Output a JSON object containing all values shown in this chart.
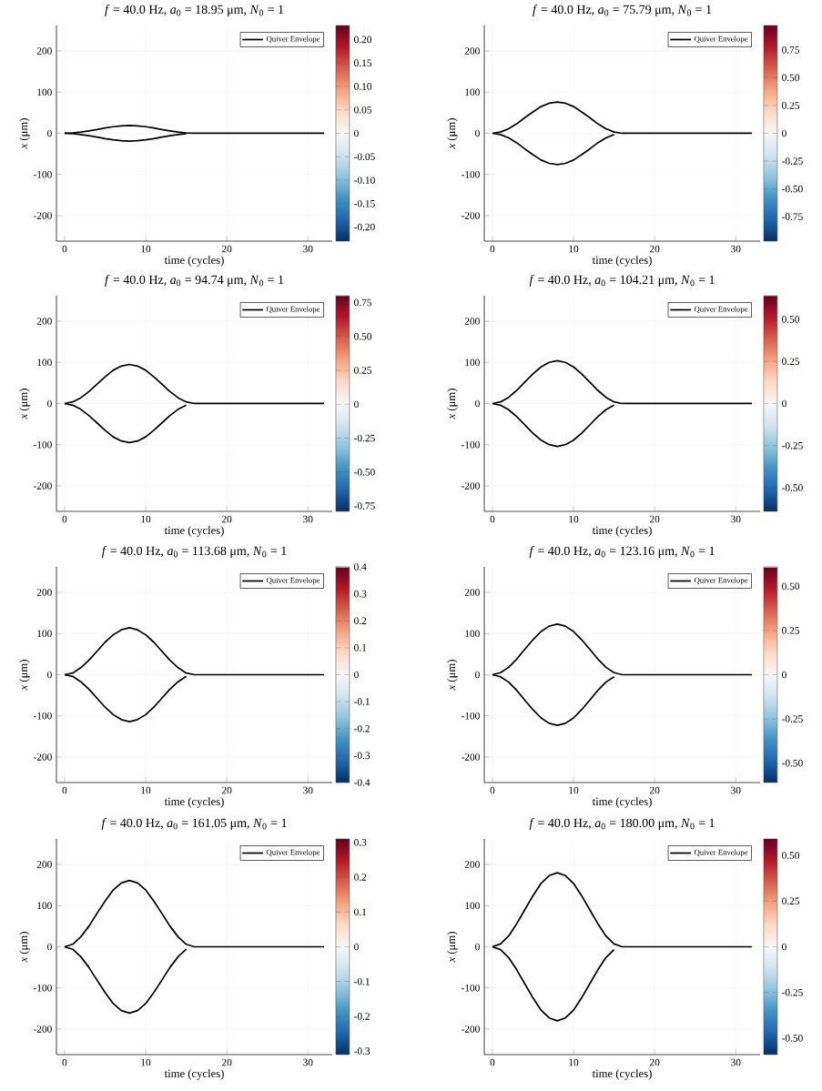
{
  "chart_data": [
    {
      "type": "line",
      "title": "*f* = 40.0 Hz, *a*$_{0}$ = 18.95 μm, *N*$_{0}$ = 1",
      "xlabel": "time (cycles)",
      "ylabel": "*x* (μm)",
      "x": [
        0,
        1,
        2,
        3,
        4,
        5,
        6,
        7,
        8,
        9,
        10,
        11,
        12,
        13,
        14,
        15,
        16,
        32
      ],
      "xlim": [
        -1,
        33
      ],
      "ylim": [
        -262,
        262
      ],
      "xticks": [
        0,
        10,
        20,
        30
      ],
      "yticks": [
        -200,
        -100,
        0,
        100,
        200
      ],
      "grid": true,
      "legend": "top right",
      "marker": "none",
      "line_style": "solid",
      "clim": [
        -0.23,
        0.23
      ],
      "cticks": [
        {
          "value": -0.2,
          "label": "-0.20"
        },
        {
          "value": -0.15,
          "label": "-0.15"
        },
        {
          "value": -0.1,
          "label": "-0.10"
        },
        -0.05,
        0,
        0.05,
        {
          "value": 0.1,
          "label": "0.10"
        },
        0.15,
        {
          "value": 0.2,
          "label": "0.20"
        }
      ],
      "series": [
        {
          "name": "Quiver Envelope",
          "color": "#000000",
          "values": [
            0,
            1,
            3,
            6,
            9,
            13,
            16,
            18,
            19,
            18,
            16,
            13,
            9,
            6,
            3,
            1,
            0,
            0
          ]
        },
        {
          "color": "#000000",
          "x": [
            0,
            1,
            2,
            3,
            4,
            5,
            6,
            7,
            8,
            9,
            10,
            11,
            12,
            13,
            14,
            15
          ],
          "values": [
            0,
            -1,
            -3,
            -6,
            -9,
            -13,
            -16,
            -18,
            -19,
            -18,
            -16,
            -13,
            -9,
            -6,
            -3,
            -1
          ]
        }
      ]
    },
    {
      "type": "line",
      "title": "*f* = 40.0 Hz, *a*$_{0}$ = 75.79 μm, *N*$_{0}$ = 1",
      "xlabel": "time (cycles)",
      "ylabel": "*x* (μm)",
      "x": [
        0,
        1,
        2,
        3,
        4,
        5,
        6,
        7,
        8,
        9,
        10,
        11,
        12,
        13,
        14,
        15,
        16,
        32
      ],
      "xlim": [
        -1,
        33
      ],
      "ylim": [
        -262,
        262
      ],
      "xticks": [
        0,
        10,
        20,
        30
      ],
      "yticks": [
        -200,
        -100,
        0,
        100,
        200
      ],
      "grid": true,
      "legend": "top right",
      "marker": "none",
      "line_style": "solid",
      "clim": [
        -0.97,
        0.97
      ],
      "cticks": [
        -0.75,
        {
          "value": -0.5,
          "label": "-0.50"
        },
        -0.25,
        0,
        0.25,
        {
          "value": 0.5,
          "label": "0.50"
        },
        0.75
      ],
      "series": [
        {
          "name": "Quiver Envelope",
          "color": "#000000",
          "values": [
            0,
            3,
            11,
            23,
            38,
            52,
            65,
            73,
            76,
            73,
            65,
            52,
            38,
            23,
            11,
            3,
            0,
            0
          ]
        },
        {
          "color": "#000000",
          "x": [
            0,
            1,
            2,
            3,
            4,
            5,
            6,
            7,
            8,
            9,
            10,
            11,
            12,
            13,
            14,
            15
          ],
          "values": [
            0,
            -3,
            -11,
            -23,
            -38,
            -52,
            -65,
            -73,
            -76,
            -73,
            -65,
            -52,
            -38,
            -23,
            -11,
            -3
          ]
        }
      ]
    },
    {
      "type": "line",
      "title": "*f* = 40.0 Hz, *a*$_{0}$ = 94.74 μm, *N*$_{0}$ = 1",
      "xlabel": "time (cycles)",
      "ylabel": "*x* (μm)",
      "x": [
        0,
        1,
        2,
        3,
        4,
        5,
        6,
        7,
        8,
        9,
        10,
        11,
        12,
        13,
        14,
        15,
        16,
        32
      ],
      "xlim": [
        -1,
        33
      ],
      "ylim": [
        -262,
        262
      ],
      "xticks": [
        0,
        10,
        20,
        30
      ],
      "yticks": [
        -200,
        -100,
        0,
        100,
        200
      ],
      "grid": true,
      "legend": "top right",
      "marker": "none",
      "line_style": "solid",
      "clim": [
        -0.79,
        0.8
      ],
      "cticks": [
        -0.75,
        {
          "value": -0.5,
          "label": "-0.50"
        },
        -0.25,
        0,
        0.25,
        {
          "value": 0.5,
          "label": "0.50"
        },
        0.75
      ],
      "series": [
        {
          "name": "Quiver Envelope",
          "color": "#000000",
          "values": [
            0,
            4,
            14,
            29,
            47,
            65,
            81,
            91,
            95,
            91,
            81,
            65,
            47,
            29,
            14,
            4,
            0,
            0
          ]
        },
        {
          "color": "#000000",
          "x": [
            0,
            1,
            2,
            3,
            4,
            5,
            6,
            7,
            8,
            9,
            10,
            11,
            12,
            13,
            14,
            15
          ],
          "values": [
            0,
            -4,
            -14,
            -29,
            -47,
            -65,
            -81,
            -91,
            -95,
            -91,
            -81,
            -65,
            -47,
            -29,
            -14,
            -4
          ]
        }
      ]
    },
    {
      "type": "line",
      "title": "*f* = 40.0 Hz, *a*$_{0}$ = 104.21 μm, *N*$_{0}$ = 1",
      "xlabel": "time (cycles)",
      "ylabel": "*x* (μm)",
      "x": [
        0,
        1,
        2,
        3,
        4,
        5,
        6,
        7,
        8,
        9,
        10,
        11,
        12,
        13,
        14,
        15,
        16,
        32
      ],
      "xlim": [
        -1,
        33
      ],
      "ylim": [
        -262,
        262
      ],
      "xticks": [
        0,
        10,
        20,
        30
      ],
      "yticks": [
        -200,
        -100,
        0,
        100,
        200
      ],
      "grid": true,
      "legend": "top right",
      "marker": "none",
      "line_style": "solid",
      "clim": [
        -0.64,
        0.64
      ],
      "cticks": [
        {
          "value": -0.5,
          "label": "-0.50"
        },
        -0.25,
        0,
        0.25,
        {
          "value": 0.5,
          "label": "0.50"
        }
      ],
      "series": [
        {
          "name": "Quiver Envelope",
          "color": "#000000",
          "values": [
            0,
            4,
            15,
            32,
            52,
            72,
            89,
            100,
            104,
            100,
            89,
            72,
            52,
            32,
            15,
            4,
            0,
            0
          ]
        },
        {
          "color": "#000000",
          "x": [
            0,
            1,
            2,
            3,
            4,
            5,
            6,
            7,
            8,
            9,
            10,
            11,
            12,
            13,
            14,
            15
          ],
          "values": [
            0,
            -4,
            -15,
            -32,
            -52,
            -72,
            -89,
            -100,
            -104,
            -100,
            -89,
            -72,
            -52,
            -32,
            -15,
            -4
          ]
        }
      ]
    },
    {
      "type": "line",
      "title": "*f* = 40.0 Hz, *a*$_{0}$ = 113.68 μm, *N*$_{0}$ = 1",
      "xlabel": "time (cycles)",
      "ylabel": "*x* (μm)",
      "x": [
        0,
        1,
        2,
        3,
        4,
        5,
        6,
        7,
        8,
        9,
        10,
        11,
        12,
        13,
        14,
        15,
        16,
        32
      ],
      "xlim": [
        -1,
        33
      ],
      "ylim": [
        -262,
        262
      ],
      "xticks": [
        0,
        10,
        20,
        30
      ],
      "yticks": [
        -200,
        -100,
        0,
        100,
        200
      ],
      "grid": true,
      "legend": "top right",
      "marker": "none",
      "line_style": "solid",
      "clim": [
        -0.4,
        0.4
      ],
      "cticks": [
        -0.4,
        -0.3,
        -0.2,
        -0.1,
        0,
        0.1,
        0.2,
        0.3,
        0.4
      ],
      "series": [
        {
          "name": "Quiver Envelope",
          "color": "#000000",
          "values": [
            0,
            4,
            17,
            35,
            57,
            79,
            97,
            109,
            114,
            109,
            97,
            79,
            57,
            35,
            17,
            4,
            0,
            0
          ]
        },
        {
          "color": "#000000",
          "x": [
            0,
            1,
            2,
            3,
            4,
            5,
            6,
            7,
            8,
            9,
            10,
            11,
            12,
            13,
            14,
            15
          ],
          "values": [
            0,
            -4,
            -17,
            -35,
            -57,
            -79,
            -97,
            -109,
            -114,
            -109,
            -97,
            -79,
            -57,
            -35,
            -17,
            -4
          ]
        }
      ]
    },
    {
      "type": "line",
      "title": "*f* = 40.0 Hz, *a*$_{0}$ = 123.16 μm, *N*$_{0}$ = 1",
      "xlabel": "time (cycles)",
      "ylabel": "*x* (μm)",
      "x": [
        0,
        1,
        2,
        3,
        4,
        5,
        6,
        7,
        8,
        9,
        10,
        11,
        12,
        13,
        14,
        15,
        16,
        32
      ],
      "xlim": [
        -1,
        33
      ],
      "ylim": [
        -262,
        262
      ],
      "xticks": [
        0,
        10,
        20,
        30
      ],
      "yticks": [
        -200,
        -100,
        0,
        100,
        200
      ],
      "grid": true,
      "legend": "top right",
      "marker": "none",
      "line_style": "solid",
      "clim": [
        -0.61,
        0.61
      ],
      "cticks": [
        {
          "value": -0.5,
          "label": "-0.50"
        },
        -0.25,
        0,
        0.25,
        {
          "value": 0.5,
          "label": "0.50"
        }
      ],
      "series": [
        {
          "name": "Quiver Envelope",
          "color": "#000000",
          "values": [
            0,
            5,
            18,
            38,
            62,
            85,
            105,
            118,
            123,
            118,
            105,
            85,
            62,
            38,
            18,
            5,
            0,
            0
          ]
        },
        {
          "color": "#000000",
          "x": [
            0,
            1,
            2,
            3,
            4,
            5,
            6,
            7,
            8,
            9,
            10,
            11,
            12,
            13,
            14,
            15
          ],
          "values": [
            0,
            -5,
            -18,
            -38,
            -62,
            -85,
            -105,
            -118,
            -123,
            -118,
            -105,
            -85,
            -62,
            -38,
            -18,
            -5
          ]
        }
      ]
    },
    {
      "type": "line",
      "title": "*f* = 40.0 Hz, *a*$_{0}$ = 161.05 μm, *N*$_{0}$ = 1",
      "xlabel": "time (cycles)",
      "ylabel": "*x* (μm)",
      "x": [
        0,
        1,
        2,
        3,
        4,
        5,
        6,
        7,
        8,
        9,
        10,
        11,
        12,
        13,
        14,
        15,
        16,
        32
      ],
      "xlim": [
        -1,
        33
      ],
      "ylim": [
        -262,
        262
      ],
      "xticks": [
        0,
        10,
        20,
        30
      ],
      "yticks": [
        -200,
        -100,
        0,
        100,
        200
      ],
      "grid": true,
      "legend": "top right",
      "marker": "none",
      "line_style": "solid",
      "clim": [
        -0.31,
        0.31
      ],
      "cticks": [
        -0.3,
        -0.2,
        -0.1,
        0,
        0.1,
        0.2,
        0.3
      ],
      "series": [
        {
          "name": "Quiver Envelope",
          "color": "#000000",
          "values": [
            0,
            6,
            24,
            50,
            81,
            111,
            138,
            155,
            161,
            155,
            138,
            111,
            81,
            50,
            24,
            6,
            0,
            0
          ]
        },
        {
          "color": "#000000",
          "x": [
            0,
            1,
            2,
            3,
            4,
            5,
            6,
            7,
            8,
            9,
            10,
            11,
            12,
            13,
            14,
            15
          ],
          "values": [
            0,
            -6,
            -24,
            -50,
            -81,
            -111,
            -138,
            -155,
            -161,
            -155,
            -138,
            -111,
            -81,
            -50,
            -24,
            -6
          ]
        }
      ]
    },
    {
      "type": "line",
      "title": "*f* = 40.0 Hz, *a*$_{0}$ = 180.00 μm, *N*$_{0}$ = 1",
      "xlabel": "time (cycles)",
      "ylabel": "*x* (μm)",
      "x": [
        0,
        1,
        2,
        3,
        4,
        5,
        6,
        7,
        8,
        9,
        10,
        11,
        12,
        13,
        14,
        15,
        16,
        32
      ],
      "xlim": [
        -1,
        33
      ],
      "ylim": [
        -262,
        262
      ],
      "xticks": [
        0,
        10,
        20,
        30
      ],
      "yticks": [
        -200,
        -100,
        0,
        100,
        200
      ],
      "grid": true,
      "legend": "top right",
      "marker": "none",
      "line_style": "solid",
      "clim": [
        -0.59,
        0.59
      ],
      "cticks": [
        {
          "value": -0.5,
          "label": "-0.50"
        },
        -0.25,
        0,
        0.25,
        {
          "value": 0.5,
          "label": "0.50"
        }
      ],
      "series": [
        {
          "name": "Quiver Envelope",
          "color": "#000000",
          "values": [
            0,
            7,
            26,
            56,
            90,
            124,
            154,
            173,
            180,
            173,
            154,
            124,
            90,
            56,
            26,
            7,
            0,
            0
          ]
        },
        {
          "color": "#000000",
          "x": [
            0,
            1,
            2,
            3,
            4,
            5,
            6,
            7,
            8,
            9,
            10,
            11,
            12,
            13,
            14,
            15
          ],
          "values": [
            0,
            -7,
            -26,
            -56,
            -90,
            -124,
            -154,
            -173,
            -180,
            -173,
            -154,
            -124,
            -90,
            -56,
            -26,
            -7
          ]
        }
      ]
    }
  ]
}
